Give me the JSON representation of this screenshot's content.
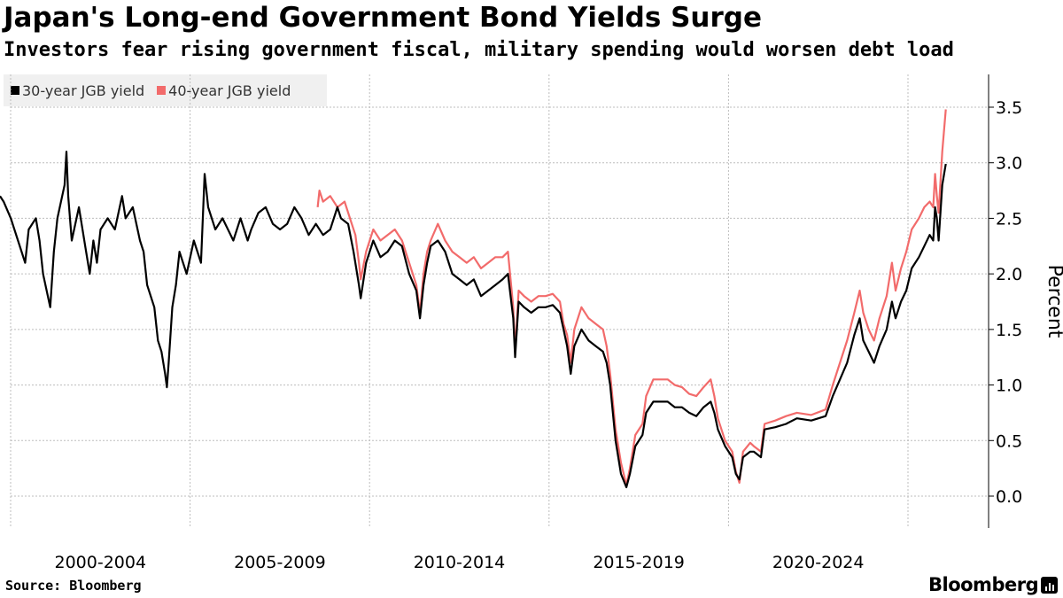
{
  "title": "Japan's Long-end Government Bond Yields Surge",
  "subtitle": "Investors fear rising government fiscal, military spending would worsen debt load",
  "source": "Source: Bloomberg",
  "brand": "Bloomberg",
  "colors": {
    "series30": "#000000",
    "series40": "#f26b6b",
    "grid": "#bdbdbd",
    "legendBg": "#f0f0f0"
  },
  "chart_data": {
    "type": "line",
    "title": "Japan's Long-end Government Bond Yields Surge",
    "ylabel": "Percent",
    "xlabel": "",
    "ylim": [
      -0.25,
      3.8
    ],
    "xlim": [
      1999.0,
      2025.9
    ],
    "y_ticks": [
      0.0,
      0.5,
      1.0,
      1.5,
      2.0,
      2.5,
      3.0,
      3.5
    ],
    "y_tick_labels": [
      "0.0",
      "0.5",
      "1.0",
      "1.5",
      "2.0",
      "2.5",
      "3.0",
      "3.5"
    ],
    "x_tick_labels": [
      "2000-2004",
      "2005-2009",
      "2010-2014",
      "2015-2019",
      "2020-2024"
    ],
    "x_label_positions": [
      2001.5,
      2006.5,
      2011.5,
      2016.5,
      2021.5
    ],
    "x_gridlines": [
      1999.0,
      2004.0,
      2009.0,
      2014.0,
      2019.0,
      2024.0
    ],
    "grid": true,
    "legend": "top-left",
    "series": [
      {
        "name": "30-year JGB yield",
        "color": "#000000",
        "points": [
          [
            1999.0,
            2.7
          ],
          [
            1999.1,
            2.65
          ],
          [
            1999.3,
            2.5
          ],
          [
            1999.5,
            2.3
          ],
          [
            1999.7,
            2.1
          ],
          [
            1999.8,
            2.4
          ],
          [
            2000.0,
            2.5
          ],
          [
            2000.1,
            2.3
          ],
          [
            2000.2,
            2.0
          ],
          [
            2000.4,
            1.7
          ],
          [
            2000.5,
            2.2
          ],
          [
            2000.6,
            2.5
          ],
          [
            2000.8,
            2.8
          ],
          [
            2000.85,
            3.1
          ],
          [
            2000.9,
            2.7
          ],
          [
            2001.0,
            2.3
          ],
          [
            2001.2,
            2.6
          ],
          [
            2001.4,
            2.2
          ],
          [
            2001.5,
            2.0
          ],
          [
            2001.6,
            2.3
          ],
          [
            2001.7,
            2.1
          ],
          [
            2001.8,
            2.4
          ],
          [
            2002.0,
            2.5
          ],
          [
            2002.2,
            2.4
          ],
          [
            2002.4,
            2.7
          ],
          [
            2002.5,
            2.5
          ],
          [
            2002.7,
            2.6
          ],
          [
            2002.9,
            2.3
          ],
          [
            2003.0,
            2.2
          ],
          [
            2003.1,
            1.9
          ],
          [
            2003.3,
            1.7
          ],
          [
            2003.4,
            1.4
          ],
          [
            2003.5,
            1.3
          ],
          [
            2003.6,
            1.1
          ],
          [
            2003.65,
            0.98
          ],
          [
            2003.7,
            1.2
          ],
          [
            2003.8,
            1.7
          ],
          [
            2003.9,
            1.9
          ],
          [
            2004.0,
            2.2
          ],
          [
            2004.2,
            2.0
          ],
          [
            2004.4,
            2.3
          ],
          [
            2004.6,
            2.1
          ],
          [
            2004.7,
            2.9
          ],
          [
            2004.8,
            2.6
          ],
          [
            2005.0,
            2.4
          ],
          [
            2005.2,
            2.5
          ],
          [
            2005.5,
            2.3
          ],
          [
            2005.7,
            2.5
          ],
          [
            2005.9,
            2.3
          ],
          [
            2006.0,
            2.4
          ],
          [
            2006.2,
            2.55
          ],
          [
            2006.4,
            2.6
          ],
          [
            2006.6,
            2.45
          ],
          [
            2006.8,
            2.4
          ],
          [
            2007.0,
            2.45
          ],
          [
            2007.2,
            2.6
          ],
          [
            2007.4,
            2.5
          ],
          [
            2007.6,
            2.35
          ],
          [
            2007.8,
            2.45
          ],
          [
            2008.0,
            2.35
          ],
          [
            2008.2,
            2.4
          ],
          [
            2008.4,
            2.6
          ],
          [
            2008.5,
            2.5
          ],
          [
            2008.7,
            2.45
          ],
          [
            2008.85,
            2.2
          ],
          [
            2009.0,
            1.9
          ],
          [
            2009.05,
            1.78
          ],
          [
            2009.2,
            2.1
          ],
          [
            2009.4,
            2.3
          ],
          [
            2009.6,
            2.15
          ],
          [
            2009.8,
            2.2
          ],
          [
            2010.0,
            2.3
          ],
          [
            2010.2,
            2.25
          ],
          [
            2010.4,
            2.0
          ],
          [
            2010.6,
            1.85
          ],
          [
            2010.7,
            1.6
          ],
          [
            2010.8,
            1.9
          ],
          [
            2010.9,
            2.1
          ],
          [
            2011.0,
            2.25
          ],
          [
            2011.2,
            2.3
          ],
          [
            2011.4,
            2.2
          ],
          [
            2011.6,
            2.0
          ],
          [
            2011.8,
            1.95
          ],
          [
            2012.0,
            1.9
          ],
          [
            2012.2,
            1.95
          ],
          [
            2012.4,
            1.8
          ],
          [
            2012.6,
            1.85
          ],
          [
            2012.8,
            1.9
          ],
          [
            2013.0,
            1.95
          ],
          [
            2013.15,
            2.0
          ],
          [
            2013.3,
            1.6
          ],
          [
            2013.35,
            1.25
          ],
          [
            2013.45,
            1.75
          ],
          [
            2013.6,
            1.7
          ],
          [
            2013.8,
            1.65
          ],
          [
            2014.0,
            1.7
          ],
          [
            2014.2,
            1.7
          ],
          [
            2014.4,
            1.72
          ],
          [
            2014.6,
            1.65
          ],
          [
            2014.7,
            1.5
          ],
          [
            2014.8,
            1.35
          ],
          [
            2014.9,
            1.1
          ],
          [
            2015.0,
            1.35
          ],
          [
            2015.2,
            1.5
          ],
          [
            2015.4,
            1.4
          ],
          [
            2015.6,
            1.35
          ],
          [
            2015.8,
            1.3
          ],
          [
            2015.9,
            1.2
          ],
          [
            2016.0,
            1.0
          ],
          [
            2016.15,
            0.5
          ],
          [
            2016.3,
            0.2
          ],
          [
            2016.45,
            0.08
          ],
          [
            2016.55,
            0.2
          ],
          [
            2016.7,
            0.45
          ],
          [
            2016.9,
            0.55
          ],
          [
            2017.0,
            0.75
          ],
          [
            2017.2,
            0.85
          ],
          [
            2017.4,
            0.85
          ],
          [
            2017.6,
            0.85
          ],
          [
            2017.8,
            0.8
          ],
          [
            2018.0,
            0.8
          ],
          [
            2018.2,
            0.75
          ],
          [
            2018.4,
            0.72
          ],
          [
            2018.6,
            0.8
          ],
          [
            2018.8,
            0.85
          ],
          [
            2018.9,
            0.75
          ],
          [
            2019.0,
            0.6
          ],
          [
            2019.2,
            0.45
          ],
          [
            2019.4,
            0.35
          ],
          [
            2019.5,
            0.2
          ],
          [
            2019.6,
            0.15
          ],
          [
            2019.7,
            0.35
          ],
          [
            2019.9,
            0.4
          ],
          [
            2020.0,
            0.4
          ],
          [
            2020.2,
            0.35
          ],
          [
            2020.3,
            0.6
          ],
          [
            2020.6,
            0.62
          ],
          [
            2020.9,
            0.65
          ],
          [
            2021.2,
            0.7
          ],
          [
            2021.6,
            0.68
          ],
          [
            2022.0,
            0.72
          ],
          [
            2022.2,
            0.9
          ],
          [
            2022.4,
            1.05
          ],
          [
            2022.6,
            1.2
          ],
          [
            2022.8,
            1.45
          ],
          [
            2022.95,
            1.6
          ],
          [
            2023.05,
            1.4
          ],
          [
            2023.2,
            1.3
          ],
          [
            2023.35,
            1.2
          ],
          [
            2023.5,
            1.35
          ],
          [
            2023.7,
            1.5
          ],
          [
            2023.85,
            1.75
          ],
          [
            2023.95,
            1.6
          ],
          [
            2024.1,
            1.75
          ],
          [
            2024.25,
            1.85
          ],
          [
            2024.4,
            2.05
          ],
          [
            2024.6,
            2.15
          ],
          [
            2024.75,
            2.25
          ],
          [
            2024.9,
            2.35
          ],
          [
            2025.0,
            2.3
          ],
          [
            2025.05,
            2.6
          ],
          [
            2025.1,
            2.5
          ],
          [
            2025.15,
            2.3
          ],
          [
            2025.25,
            2.8
          ],
          [
            2025.35,
            2.99
          ]
        ]
      },
      {
        "name": "40-year JGB yield",
        "color": "#f26b6b",
        "points": [
          [
            2007.85,
            2.6
          ],
          [
            2007.9,
            2.75
          ],
          [
            2008.0,
            2.65
          ],
          [
            2008.2,
            2.7
          ],
          [
            2008.4,
            2.6
          ],
          [
            2008.6,
            2.65
          ],
          [
            2008.8,
            2.45
          ],
          [
            2008.9,
            2.35
          ],
          [
            2009.0,
            2.1
          ],
          [
            2009.05,
            1.95
          ],
          [
            2009.2,
            2.2
          ],
          [
            2009.4,
            2.4
          ],
          [
            2009.6,
            2.3
          ],
          [
            2009.8,
            2.35
          ],
          [
            2010.0,
            2.4
          ],
          [
            2010.2,
            2.3
          ],
          [
            2010.4,
            2.1
          ],
          [
            2010.6,
            1.9
          ],
          [
            2010.7,
            1.65
          ],
          [
            2010.8,
            2.0
          ],
          [
            2010.9,
            2.2
          ],
          [
            2011.0,
            2.3
          ],
          [
            2011.2,
            2.45
          ],
          [
            2011.4,
            2.3
          ],
          [
            2011.6,
            2.2
          ],
          [
            2011.8,
            2.15
          ],
          [
            2012.0,
            2.1
          ],
          [
            2012.2,
            2.15
          ],
          [
            2012.4,
            2.05
          ],
          [
            2012.6,
            2.1
          ],
          [
            2012.8,
            2.15
          ],
          [
            2013.0,
            2.15
          ],
          [
            2013.15,
            2.2
          ],
          [
            2013.3,
            1.7
          ],
          [
            2013.35,
            1.3
          ],
          [
            2013.45,
            1.85
          ],
          [
            2013.6,
            1.8
          ],
          [
            2013.8,
            1.75
          ],
          [
            2014.0,
            1.8
          ],
          [
            2014.2,
            1.8
          ],
          [
            2014.4,
            1.82
          ],
          [
            2014.6,
            1.75
          ],
          [
            2014.7,
            1.55
          ],
          [
            2014.8,
            1.45
          ],
          [
            2014.9,
            1.2
          ],
          [
            2015.0,
            1.5
          ],
          [
            2015.2,
            1.7
          ],
          [
            2015.4,
            1.6
          ],
          [
            2015.6,
            1.55
          ],
          [
            2015.8,
            1.5
          ],
          [
            2015.9,
            1.35
          ],
          [
            2016.0,
            1.1
          ],
          [
            2016.15,
            0.6
          ],
          [
            2016.3,
            0.3
          ],
          [
            2016.45,
            0.1
          ],
          [
            2016.55,
            0.25
          ],
          [
            2016.7,
            0.55
          ],
          [
            2016.9,
            0.65
          ],
          [
            2017.0,
            0.9
          ],
          [
            2017.2,
            1.05
          ],
          [
            2017.4,
            1.05
          ],
          [
            2017.6,
            1.05
          ],
          [
            2017.8,
            1.0
          ],
          [
            2018.0,
            0.98
          ],
          [
            2018.2,
            0.92
          ],
          [
            2018.4,
            0.9
          ],
          [
            2018.6,
            0.98
          ],
          [
            2018.8,
            1.05
          ],
          [
            2018.9,
            0.9
          ],
          [
            2019.0,
            0.7
          ],
          [
            2019.2,
            0.5
          ],
          [
            2019.4,
            0.4
          ],
          [
            2019.5,
            0.22
          ],
          [
            2019.6,
            0.12
          ],
          [
            2019.7,
            0.4
          ],
          [
            2019.9,
            0.48
          ],
          [
            2020.0,
            0.45
          ],
          [
            2020.2,
            0.4
          ],
          [
            2020.3,
            0.65
          ],
          [
            2020.6,
            0.68
          ],
          [
            2020.9,
            0.72
          ],
          [
            2021.2,
            0.75
          ],
          [
            2021.6,
            0.73
          ],
          [
            2022.0,
            0.78
          ],
          [
            2022.2,
            1.0
          ],
          [
            2022.4,
            1.2
          ],
          [
            2022.6,
            1.4
          ],
          [
            2022.8,
            1.65
          ],
          [
            2022.95,
            1.85
          ],
          [
            2023.05,
            1.65
          ],
          [
            2023.2,
            1.5
          ],
          [
            2023.35,
            1.4
          ],
          [
            2023.5,
            1.6
          ],
          [
            2023.7,
            1.8
          ],
          [
            2023.85,
            2.1
          ],
          [
            2023.95,
            1.85
          ],
          [
            2024.1,
            2.05
          ],
          [
            2024.25,
            2.2
          ],
          [
            2024.4,
            2.4
          ],
          [
            2024.6,
            2.5
          ],
          [
            2024.75,
            2.6
          ],
          [
            2024.9,
            2.65
          ],
          [
            2025.0,
            2.6
          ],
          [
            2025.05,
            2.9
          ],
          [
            2025.1,
            2.7
          ],
          [
            2025.15,
            2.55
          ],
          [
            2025.25,
            3.1
          ],
          [
            2025.35,
            3.48
          ]
        ]
      }
    ]
  }
}
